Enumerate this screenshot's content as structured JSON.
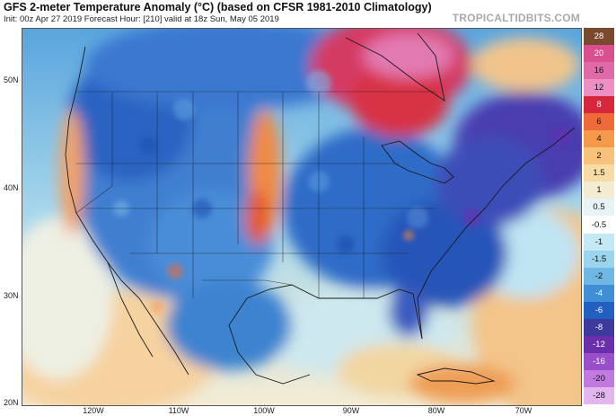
{
  "header": {
    "title": "GFS 2-meter Temperature Anomaly (°C) (based on CFSR 1981-2010 Climatology)",
    "subtitle": "Init: 00z Apr 27 2019   Forecast Hour: [210]   valid at 18z Sun, May 05 2019",
    "brand": "TROPICALTIDBITS.COM"
  },
  "map": {
    "lat_labels": [
      "50N",
      "40N",
      "30N",
      "20N"
    ],
    "lon_labels": [
      "120W",
      "110W",
      "100W",
      "90W",
      "80W",
      "70W"
    ],
    "regions": [
      {
        "name": "pacific-ocean",
        "anomaly": "0.5 to 2"
      },
      {
        "name": "western-us",
        "anomaly": "-4 to -8"
      },
      {
        "name": "great-plains-warm-band",
        "anomaly": "4 to 8"
      },
      {
        "name": "hudson-bay",
        "anomaly": "8 to 20"
      },
      {
        "name": "eastern-us",
        "anomaly": "-4 to -10"
      },
      {
        "name": "gulf-of-mexico",
        "anomaly": "0.5 to 2"
      },
      {
        "name": "caribbean",
        "anomaly": "2 to 6"
      }
    ]
  },
  "colorbar": {
    "levels": [
      "28",
      "20",
      "16",
      "12",
      "8",
      "6",
      "4",
      "2",
      "1.5",
      "1",
      "0.5",
      "-0.5",
      "-1",
      "-1.5",
      "-2",
      "-4",
      "-6",
      "-8",
      "-12",
      "-16",
      "-20",
      "-28"
    ],
    "colors": [
      "#7a4a2e",
      "#d94f8f",
      "#e06aa8",
      "#ec8fc2",
      "#d8273a",
      "#ee6a3a",
      "#f59a4a",
      "#f8c27a",
      "#f7dca6",
      "#f3ecd2",
      "#e7f4f6",
      "#ffffff",
      "#c4e8f4",
      "#9bd4ee",
      "#6fb8e6",
      "#3f8ed6",
      "#235fc0",
      "#3d3a9e",
      "#6b2fae",
      "#9a4fca",
      "#c17be0",
      "#e3b6f0"
    ]
  }
}
